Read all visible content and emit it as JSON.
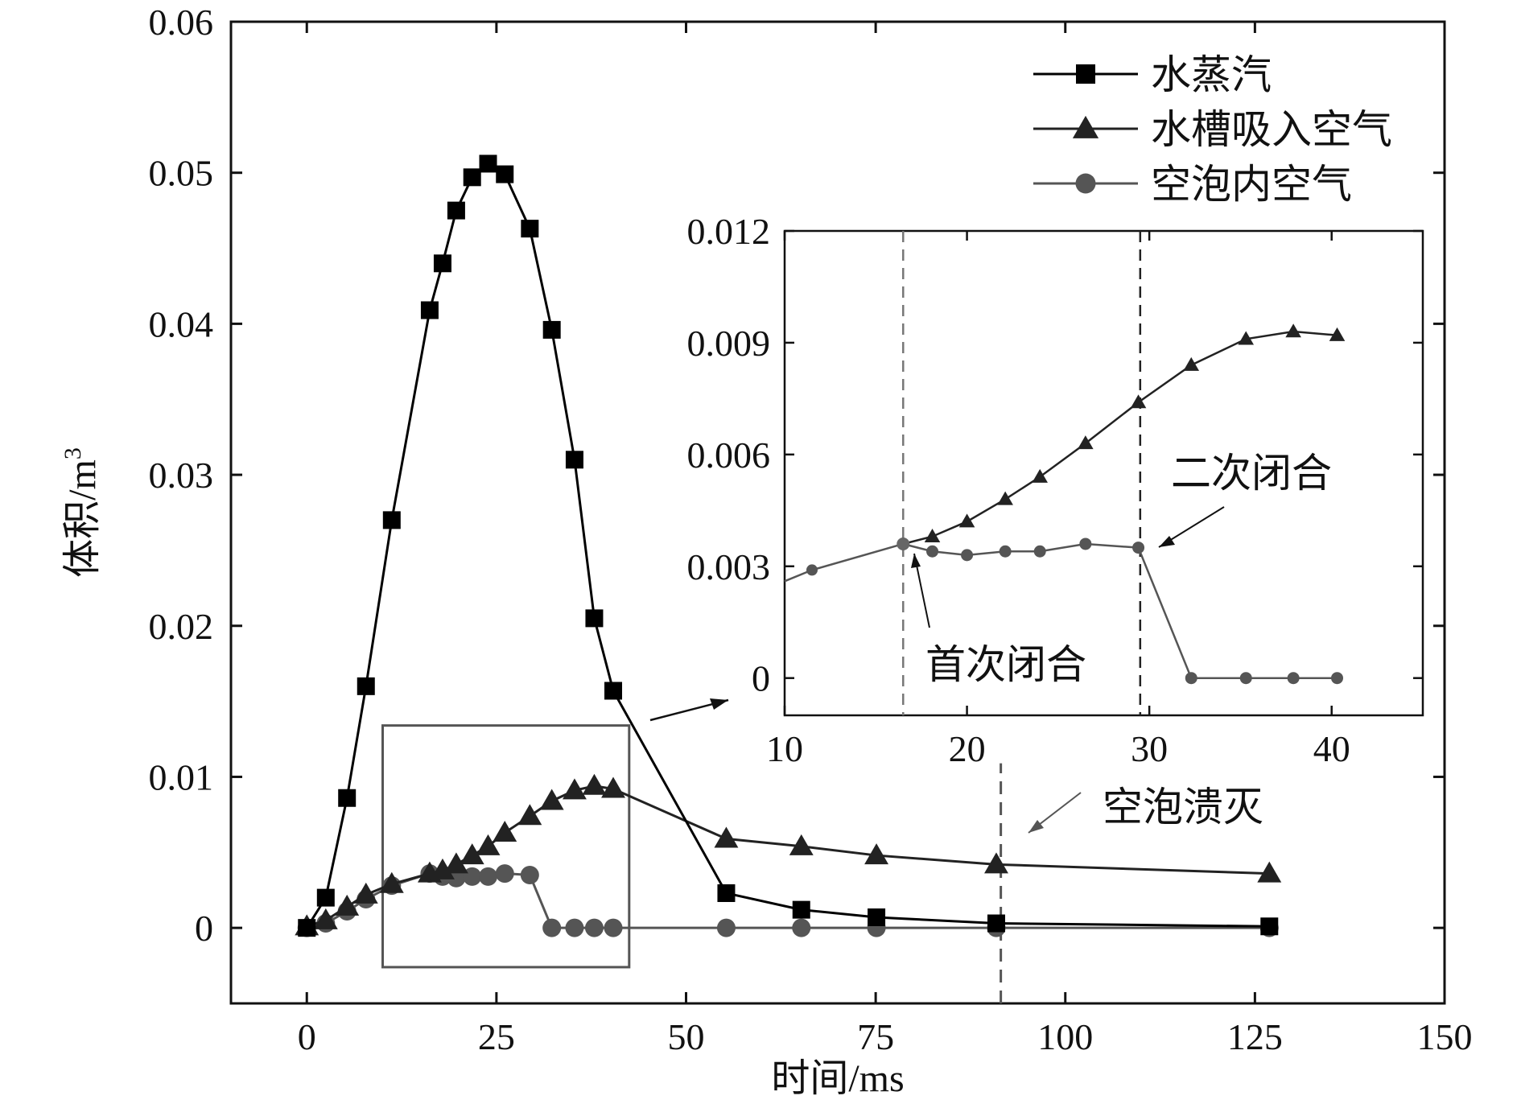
{
  "chart_data": {
    "type": "line",
    "title": "",
    "xlabel": "时间/ms",
    "ylabel": "体积/m",
    "ylabel_sup": "3",
    "xlim": [
      -10,
      150
    ],
    "ylim": [
      -0.005,
      0.06
    ],
    "xticks": [
      0,
      25,
      50,
      75,
      100,
      125,
      150
    ],
    "yticks": [
      0,
      0.01,
      0.02,
      0.03,
      0.04,
      0.05,
      0.06
    ],
    "xtick_labels": [
      "0",
      "25",
      "50",
      "75",
      "100",
      "125",
      "150"
    ],
    "ytick_labels": [
      "0",
      "0.01",
      "0.02",
      "0.03",
      "0.04",
      "0.05",
      "0.06"
    ],
    "legend_position": "top-right",
    "series": [
      {
        "name": "水蒸汽",
        "marker": "square",
        "color": "#000000",
        "x": [
          0,
          2.5,
          5.3,
          7.8,
          11.2,
          16.2,
          17.9,
          19.7,
          21.8,
          23.9,
          26.1,
          29.4,
          32.3,
          35.3,
          37.9,
          40.4,
          55.3,
          65.2,
          75.1,
          90.9,
          126.9
        ],
        "y": [
          0,
          0.002,
          0.0086,
          0.016,
          0.027,
          0.0409,
          0.044,
          0.0475,
          0.0497,
          0.0506,
          0.0499,
          0.0463,
          0.0396,
          0.031,
          0.0205,
          0.0157,
          0.0023,
          0.0012,
          0.0007,
          0.0003,
          0.0001
        ]
      },
      {
        "name": "水槽吸入空气",
        "marker": "triangle",
        "color": "#222222",
        "x": [
          0,
          2.5,
          5.3,
          7.8,
          11.2,
          16.2,
          17.9,
          19.7,
          21.8,
          23.9,
          26.1,
          29.4,
          32.3,
          35.3,
          37.9,
          40.4,
          55.3,
          65.2,
          75.1,
          90.9,
          126.9
        ],
        "y": [
          0.0001,
          0.0005,
          0.0014,
          0.0022,
          0.0029,
          0.0036,
          0.0038,
          0.0042,
          0.0048,
          0.0054,
          0.0063,
          0.0074,
          0.0084,
          0.0091,
          0.0094,
          0.0092,
          0.0059,
          0.0054,
          0.0048,
          0.0042,
          0.0036
        ]
      },
      {
        "name": "空泡内空气",
        "marker": "circle",
        "color": "#555555",
        "x": [
          0,
          2.5,
          5.3,
          7.8,
          11.2,
          16.2,
          17.9,
          19.7,
          21.8,
          23.9,
          26.1,
          29.4,
          32.3,
          35.3,
          37.9,
          40.4,
          55.3,
          65.2,
          75.1,
          90.9,
          126.9
        ],
        "y": [
          0,
          0.0003,
          0.0011,
          0.0019,
          0.0028,
          0.0036,
          0.0034,
          0.0033,
          0.0034,
          0.0034,
          0.0036,
          0.0035,
          0,
          0,
          0,
          0,
          0,
          0,
          0,
          0,
          0
        ]
      }
    ],
    "vline": {
      "x": 91.5,
      "color": "#555555"
    },
    "zoom_box": {
      "x": [
        10,
        42.5
      ],
      "y": [
        -0.0026,
        0.0134
      ]
    },
    "annotations": {
      "collapse": "空泡溃灭",
      "first_closure": "首次闭合",
      "second_closure": "二次闭合"
    },
    "inset": {
      "xlim": [
        10,
        45
      ],
      "ylim": [
        -0.001,
        0.012
      ],
      "xticks": [
        10,
        20,
        30,
        40
      ],
      "yticks": [
        0,
        0.003,
        0.006,
        0.009,
        0.012
      ],
      "xtick_labels": [
        "10",
        "20",
        "30",
        "40"
      ],
      "ytick_labels": [
        "0",
        "0.003",
        "0.006",
        "0.009",
        "0.012"
      ],
      "vlines": [
        {
          "x": 16.5,
          "color": "#777777"
        },
        {
          "x": 29.5,
          "color": "#222222"
        }
      ],
      "shared_segment": {
        "x": [
          10,
          11.5,
          16.5
        ],
        "y": [
          0.0026,
          0.0029,
          0.0036
        ]
      },
      "air_absorbed": {
        "x": [
          16.5,
          18.1,
          20.0,
          22.1,
          24.0,
          26.5,
          29.4,
          32.3,
          35.3,
          37.9,
          40.3
        ],
        "y": [
          0.0036,
          0.0038,
          0.0042,
          0.0048,
          0.0054,
          0.0063,
          0.0074,
          0.0084,
          0.0091,
          0.0093,
          0.0092
        ]
      },
      "cavity_air": {
        "x": [
          16.5,
          18.1,
          20.0,
          22.1,
          24.0,
          26.5,
          29.4,
          32.3,
          35.3,
          37.9,
          40.3
        ],
        "y": [
          0.0036,
          0.0034,
          0.0033,
          0.0034,
          0.0034,
          0.0036,
          0.0035,
          0,
          0,
          0,
          0
        ]
      }
    }
  }
}
